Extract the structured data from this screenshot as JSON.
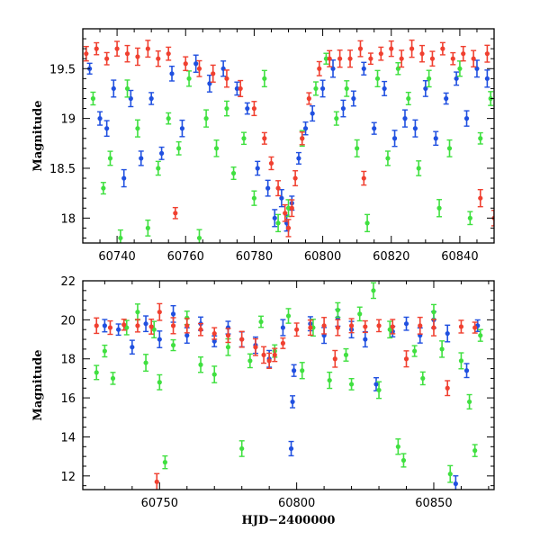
{
  "chart_data": [
    {
      "type": "scatter",
      "panel": "top",
      "xlabel": "",
      "ylabel": "Magnitude",
      "xlim": [
        60730,
        60850
      ],
      "ylim": [
        19.9,
        17.75
      ],
      "y_inverted": true,
      "x_ticks": [
        60740,
        60760,
        60780,
        60800,
        60820,
        60840
      ],
      "x_tick_labels": [
        "60740",
        "60760",
        "60780",
        "60800",
        "60820",
        "60840"
      ],
      "y_ticks": [
        18,
        18.5,
        19,
        19.5
      ],
      "y_tick_labels": [
        "18",
        "18.5",
        "19",
        "19.5"
      ],
      "error_bars": true,
      "grid": false,
      "series": [
        {
          "color": "#2050e0",
          "points": [
            [
              60732,
              19.5
            ],
            [
              60735,
              19.0
            ],
            [
              60737,
              18.9
            ],
            [
              60739,
              19.3
            ],
            [
              60742,
              18.4
            ],
            [
              60744,
              19.2
            ],
            [
              60747,
              18.6
            ],
            [
              60750,
              19.2
            ],
            [
              60753,
              18.65
            ],
            [
              60756,
              19.45
            ],
            [
              60759,
              18.9
            ],
            [
              60763,
              19.55
            ],
            [
              60767,
              19.35
            ],
            [
              60771,
              19.5
            ],
            [
              60775,
              19.3
            ],
            [
              60778,
              19.1
            ],
            [
              60781,
              18.5
            ],
            [
              60784,
              18.3
            ],
            [
              60786,
              18.0
            ],
            [
              60788,
              18.2
            ],
            [
              60789.5,
              17.95
            ],
            [
              60791,
              18.15
            ],
            [
              60793,
              18.6
            ],
            [
              60795,
              18.9
            ],
            [
              60797,
              19.05
            ],
            [
              60800,
              19.3
            ],
            [
              60803,
              19.5
            ],
            [
              60806,
              19.1
            ],
            [
              60809,
              19.2
            ],
            [
              60812,
              19.5
            ],
            [
              60815,
              18.9
            ],
            [
              60818,
              19.3
            ],
            [
              60821,
              18.8
            ],
            [
              60824,
              19.0
            ],
            [
              60827,
              18.9
            ],
            [
              60830,
              19.3
            ],
            [
              60833,
              18.8
            ],
            [
              60836,
              19.2
            ],
            [
              60839,
              19.4
            ],
            [
              60842,
              19.0
            ],
            [
              60845,
              19.5
            ],
            [
              60848,
              19.4
            ]
          ]
        },
        {
          "color": "#40e040",
          "points": [
            [
              60733,
              19.2
            ],
            [
              60736,
              18.3
            ],
            [
              60738,
              18.6
            ],
            [
              60741,
              17.8
            ],
            [
              60743,
              19.3
            ],
            [
              60746,
              18.9
            ],
            [
              60749,
              17.9
            ],
            [
              60752,
              18.5
            ],
            [
              60755,
              19.0
            ],
            [
              60758,
              18.7
            ],
            [
              60761,
              19.4
            ],
            [
              60764,
              17.8
            ],
            [
              60766,
              19.0
            ],
            [
              60769,
              18.7
            ],
            [
              60772,
              19.1
            ],
            [
              60774,
              18.45
            ],
            [
              60777,
              18.8
            ],
            [
              60780,
              18.2
            ],
            [
              60783,
              19.4
            ],
            [
              60787,
              17.95
            ],
            [
              60790,
              18.1
            ],
            [
              60794,
              18.8
            ],
            [
              60798,
              19.3
            ],
            [
              60801,
              19.6
            ],
            [
              60804,
              19.0
            ],
            [
              60807,
              19.3
            ],
            [
              60810,
              18.7
            ],
            [
              60813,
              17.95
            ],
            [
              60816,
              19.4
            ],
            [
              60819,
              18.6
            ],
            [
              60822,
              19.5
            ],
            [
              60825,
              19.2
            ],
            [
              60828,
              18.5
            ],
            [
              60831,
              19.4
            ],
            [
              60834,
              18.1
            ],
            [
              60837,
              18.7
            ],
            [
              60840,
              19.5
            ],
            [
              60843,
              18.0
            ],
            [
              60846,
              18.8
            ],
            [
              60849,
              19.2
            ]
          ]
        },
        {
          "color": "#f04030",
          "points": [
            [
              60731,
              19.65
            ],
            [
              60734,
              19.7
            ],
            [
              60737,
              19.6
            ],
            [
              60740,
              19.7
            ],
            [
              60743,
              19.65
            ],
            [
              60746,
              19.62
            ],
            [
              60749,
              19.7
            ],
            [
              60752,
              19.6
            ],
            [
              60755,
              19.65
            ],
            [
              60757,
              18.05
            ],
            [
              60760,
              19.55
            ],
            [
              60764,
              19.5
            ],
            [
              60768,
              19.45
            ],
            [
              60772,
              19.4
            ],
            [
              60776,
              19.3
            ],
            [
              60780,
              19.1
            ],
            [
              60783,
              18.8
            ],
            [
              60785,
              18.55
            ],
            [
              60787,
              18.3
            ],
            [
              60789,
              18.05
            ],
            [
              60790,
              17.9
            ],
            [
              60791,
              18.1
            ],
            [
              60792,
              18.4
            ],
            [
              60794,
              18.8
            ],
            [
              60796,
              19.2
            ],
            [
              60799,
              19.5
            ],
            [
              60802,
              19.6
            ],
            [
              60805,
              19.6
            ],
            [
              60808,
              19.6
            ],
            [
              60811,
              19.7
            ],
            [
              60812,
              18.4
            ],
            [
              60814,
              19.6
            ],
            [
              60817,
              19.65
            ],
            [
              60820,
              19.7
            ],
            [
              60823,
              19.6
            ],
            [
              60826,
              19.7
            ],
            [
              60829,
              19.65
            ],
            [
              60832,
              19.6
            ],
            [
              60835,
              19.7
            ],
            [
              60838,
              19.6
            ],
            [
              60841,
              19.65
            ],
            [
              60844,
              19.6
            ],
            [
              60846,
              18.2
            ],
            [
              60848,
              19.65
            ],
            [
              60850,
              18.0
            ]
          ]
        }
      ]
    },
    {
      "type": "scatter",
      "panel": "bottom",
      "xlabel": "HJD−2400000",
      "ylabel": "Magnitude",
      "xlim": [
        60722,
        60872
      ],
      "ylim": [
        22,
        11.3
      ],
      "y_inverted": true,
      "x_ticks": [
        60750,
        60800,
        60850
      ],
      "x_tick_labels": [
        "60750",
        "60800",
        "60850"
      ],
      "y_ticks": [
        12,
        14,
        16,
        18,
        20,
        22
      ],
      "y_tick_labels": [
        "12",
        "14",
        "16",
        "18",
        "20",
        "22"
      ],
      "error_bars": true,
      "grid": false,
      "series": [
        {
          "color": "#2050e0",
          "points": [
            [
              60730,
              19.7
            ],
            [
              60735,
              19.5
            ],
            [
              60740,
              18.6
            ],
            [
              60745,
              19.8
            ],
            [
              60750,
              19.0
            ],
            [
              60755,
              20.3
            ],
            [
              60760,
              19.2
            ],
            [
              60765,
              19.8
            ],
            [
              60770,
              18.9
            ],
            [
              60775,
              19.6
            ],
            [
              60780,
              19.0
            ],
            [
              60785,
              18.7
            ],
            [
              60790,
              18.0
            ],
            [
              60795,
              19.6
            ],
            [
              60798,
              13.4
            ],
            [
              60798.5,
              15.8
            ],
            [
              60799,
              17.4
            ],
            [
              60805,
              19.8
            ],
            [
              60810,
              19.2
            ],
            [
              60815,
              20.1
            ],
            [
              60820,
              19.5
            ],
            [
              60825,
              19.0
            ],
            [
              60829,
              16.7
            ],
            [
              60835,
              19.4
            ],
            [
              60840,
              19.8
            ],
            [
              60845,
              19.2
            ],
            [
              60850,
              20.0
            ],
            [
              60855,
              19.3
            ],
            [
              60858,
              11.6
            ],
            [
              60862,
              17.4
            ],
            [
              60866,
              19.7
            ]
          ]
        },
        {
          "color": "#40e040",
          "points": [
            [
              60727,
              17.3
            ],
            [
              60730,
              18.4
            ],
            [
              60733,
              17.0
            ],
            [
              60738,
              19.6
            ],
            [
              60742,
              20.4
            ],
            [
              60745,
              17.8
            ],
            [
              60748,
              19.5
            ],
            [
              60750,
              16.8
            ],
            [
              60752,
              12.7
            ],
            [
              60755,
              18.7
            ],
            [
              60760,
              20.1
            ],
            [
              60765,
              17.7
            ],
            [
              60770,
              17.2
            ],
            [
              60775,
              18.6
            ],
            [
              60780,
              13.4
            ],
            [
              60783,
              17.9
            ],
            [
              60787,
              19.9
            ],
            [
              60792,
              18.4
            ],
            [
              60797,
              20.2
            ],
            [
              60802,
              17.4
            ],
            [
              60806,
              19.6
            ],
            [
              60812,
              16.9
            ],
            [
              60815,
              20.5
            ],
            [
              60818,
              18.2
            ],
            [
              60820,
              16.7
            ],
            [
              60823,
              20.3
            ],
            [
              60828,
              21.5
            ],
            [
              60830,
              16.4
            ],
            [
              60834,
              19.5
            ],
            [
              60837,
              13.5
            ],
            [
              60839,
              12.8
            ],
            [
              60843,
              18.4
            ],
            [
              60846,
              17.0
            ],
            [
              60850,
              20.4
            ],
            [
              60853,
              18.5
            ],
            [
              60856,
              12.1
            ],
            [
              60860,
              17.9
            ],
            [
              60863,
              15.8
            ],
            [
              60865,
              13.3
            ],
            [
              60867,
              19.2
            ]
          ]
        },
        {
          "color": "#f04030",
          "points": [
            [
              60727,
              19.7
            ],
            [
              60732,
              19.6
            ],
            [
              60737,
              19.75
            ],
            [
              60742,
              19.7
            ],
            [
              60747,
              19.65
            ],
            [
              60749,
              11.7
            ],
            [
              60750,
              20.4
            ],
            [
              60755,
              19.7
            ],
            [
              60760,
              19.7
            ],
            [
              60765,
              19.5
            ],
            [
              60770,
              19.3
            ],
            [
              60775,
              19.2
            ],
            [
              60780,
              19.0
            ],
            [
              60785,
              18.6
            ],
            [
              60788,
              18.2
            ],
            [
              60790,
              17.9
            ],
            [
              60792,
              18.2
            ],
            [
              60795,
              18.8
            ],
            [
              60800,
              19.5
            ],
            [
              60805,
              19.6
            ],
            [
              60810,
              19.7
            ],
            [
              60814,
              18.0
            ],
            [
              60815,
              19.6
            ],
            [
              60820,
              19.7
            ],
            [
              60825,
              19.65
            ],
            [
              60830,
              19.7
            ],
            [
              60835,
              19.65
            ],
            [
              60840,
              18.0
            ],
            [
              60845,
              19.7
            ],
            [
              60850,
              19.6
            ],
            [
              60855,
              16.5
            ],
            [
              60860,
              19.65
            ],
            [
              60865,
              19.6
            ]
          ]
        }
      ]
    }
  ]
}
